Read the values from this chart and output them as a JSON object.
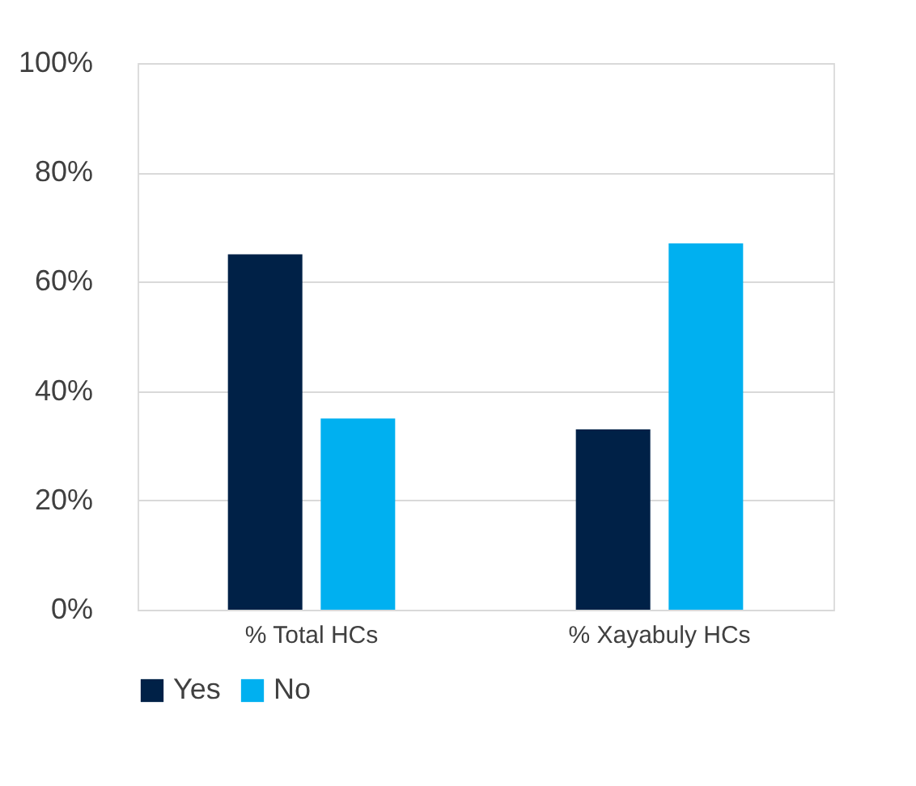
{
  "chart_data": {
    "type": "bar",
    "categories": [
      "% Total HCs",
      "% Xayabuly HCs"
    ],
    "series": [
      {
        "name": "Yes",
        "color": "#002147",
        "values": [
          65,
          33
        ]
      },
      {
        "name": "No",
        "color": "#00b0f0",
        "values": [
          35,
          67
        ]
      }
    ],
    "ylim": [
      0,
      100
    ],
    "yticks": [
      {
        "value": 0,
        "label": "0%"
      },
      {
        "value": 20,
        "label": "20%"
      },
      {
        "value": 40,
        "label": "40%"
      },
      {
        "value": 60,
        "label": "60%"
      },
      {
        "value": 80,
        "label": "80%"
      },
      {
        "value": 100,
        "label": "100%"
      }
    ],
    "grid": "y",
    "legend": "bottom"
  }
}
